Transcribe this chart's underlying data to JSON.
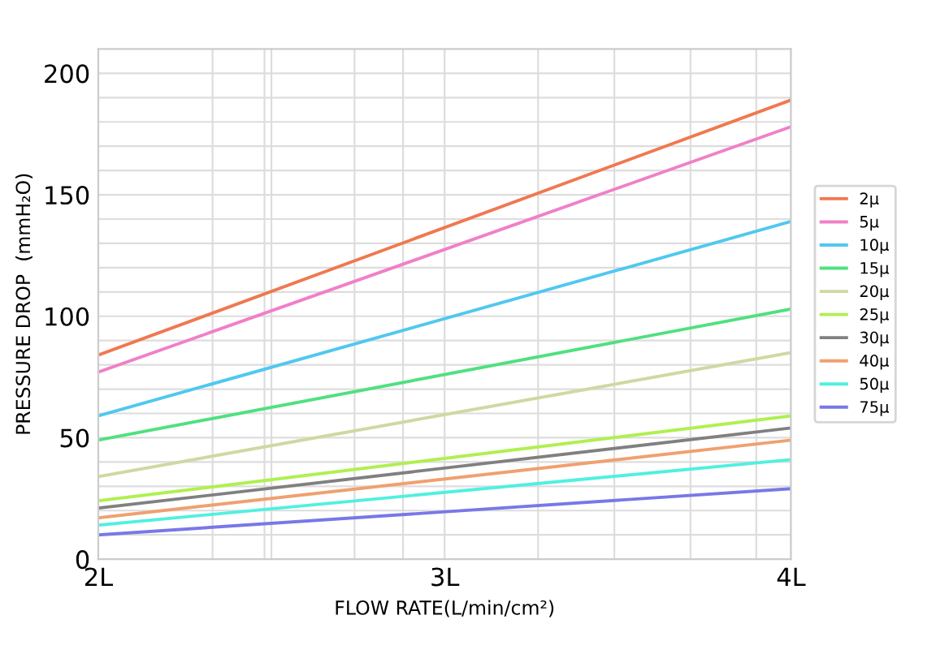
{
  "chart_data": {
    "type": "line",
    "xlabel": "FLOW RATE(L/min/cm²)",
    "ylabel": "PRESSURE DROP  (mmH₂O)",
    "x": [
      2,
      4
    ],
    "xlim": [
      2,
      4
    ],
    "xticks": [
      {
        "value": 2,
        "label": "2L"
      },
      {
        "value": 2.33,
        "label": null
      },
      {
        "value": 2.48,
        "label": null
      },
      {
        "value": 2.5,
        "label": null
      },
      {
        "value": 2.74,
        "label": null
      },
      {
        "value": 2.88,
        "label": null
      },
      {
        "value": 3,
        "label": "3L"
      },
      {
        "value": 3.27,
        "label": null
      },
      {
        "value": 3.49,
        "label": null
      },
      {
        "value": 3.71,
        "label": null
      },
      {
        "value": 3.9,
        "label": null
      },
      {
        "value": 4,
        "label": "4L"
      }
    ],
    "ylim": [
      0,
      210
    ],
    "yticks": [
      0,
      {
        "value": 10,
        "label": null
      },
      {
        "value": 20,
        "label": null
      },
      {
        "value": 30,
        "label": null
      },
      {
        "value": 40,
        "label": null
      },
      50,
      {
        "value": 60,
        "label": null
      },
      {
        "value": 70,
        "label": null
      },
      {
        "value": 80,
        "label": null
      },
      {
        "value": 90,
        "label": null
      },
      100,
      {
        "value": 110,
        "label": null
      },
      {
        "value": 120,
        "label": null
      },
      {
        "value": 130,
        "label": null
      },
      {
        "value": 140,
        "label": null
      },
      150,
      {
        "value": 160,
        "label": null
      },
      {
        "value": 170,
        "label": null
      },
      {
        "value": 180,
        "label": null
      },
      {
        "value": 190,
        "label": null
      },
      200
    ],
    "grid": true,
    "legend": "right",
    "line_style": "solid",
    "marker": "none",
    "series": [
      {
        "name": "2μ",
        "color": "#f07850",
        "values": [
          84,
          189
        ]
      },
      {
        "name": "5μ",
        "color": "#f080c8",
        "values": [
          77,
          178
        ]
      },
      {
        "name": "10μ",
        "color": "#50c8f0",
        "values": [
          59,
          139
        ]
      },
      {
        "name": "15μ",
        "color": "#50e080",
        "values": [
          49,
          103
        ]
      },
      {
        "name": "20μ",
        "color": "#d0d8a0",
        "values": [
          34,
          85
        ]
      },
      {
        "name": "25μ",
        "color": "#b0f050",
        "values": [
          24,
          59
        ]
      },
      {
        "name": "30μ",
        "color": "#808080",
        "values": [
          21,
          54
        ]
      },
      {
        "name": "40μ",
        "color": "#f0a070",
        "values": [
          17,
          49
        ]
      },
      {
        "name": "50μ",
        "color": "#50f0e0",
        "values": [
          14,
          41
        ]
      },
      {
        "name": "75μ",
        "color": "#7878e8",
        "values": [
          10,
          29
        ]
      }
    ]
  }
}
